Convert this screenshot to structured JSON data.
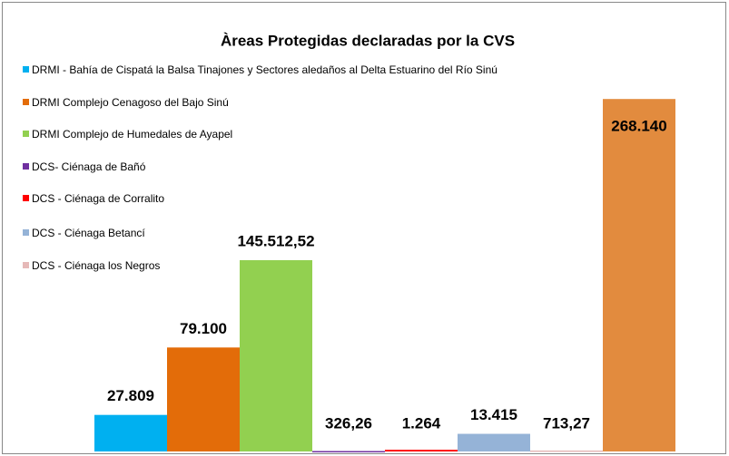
{
  "chart_data": {
    "type": "bar",
    "title": "Àreas Protegidas declaradas por la CVS",
    "categories": [
      "DRMI - Bahía de Cispatá la Balsa Tinajones y Sectores aledaños al  Delta Estuarino del Río Sinú",
      "DRMI Complejo Cenagoso del Bajo Sinú",
      "DRMI Complejo de Humedales de Ayapel",
      "DCS- Ciénaga de Bañó",
      "DCS - Ciénaga de Corralito",
      "DCS - Ciénaga Betancí",
      "DCS - Ciénaga los Negros",
      null
    ],
    "values": [
      27809,
      79100,
      145512.52,
      326.26,
      1264,
      13415,
      713.27,
      268140
    ],
    "value_labels": [
      "27.809",
      "79.100",
      "145.512,52",
      "326,26",
      "1.264",
      "13.415",
      "713,27",
      "268.140"
    ],
    "colors": [
      "#00b0f0",
      "#e36c09",
      "#92d050",
      "#7030a0",
      "#ff0000",
      "#95b3d7",
      "#e6b9b8",
      "#e28b3e"
    ],
    "ylim": [
      0,
      300000
    ]
  }
}
